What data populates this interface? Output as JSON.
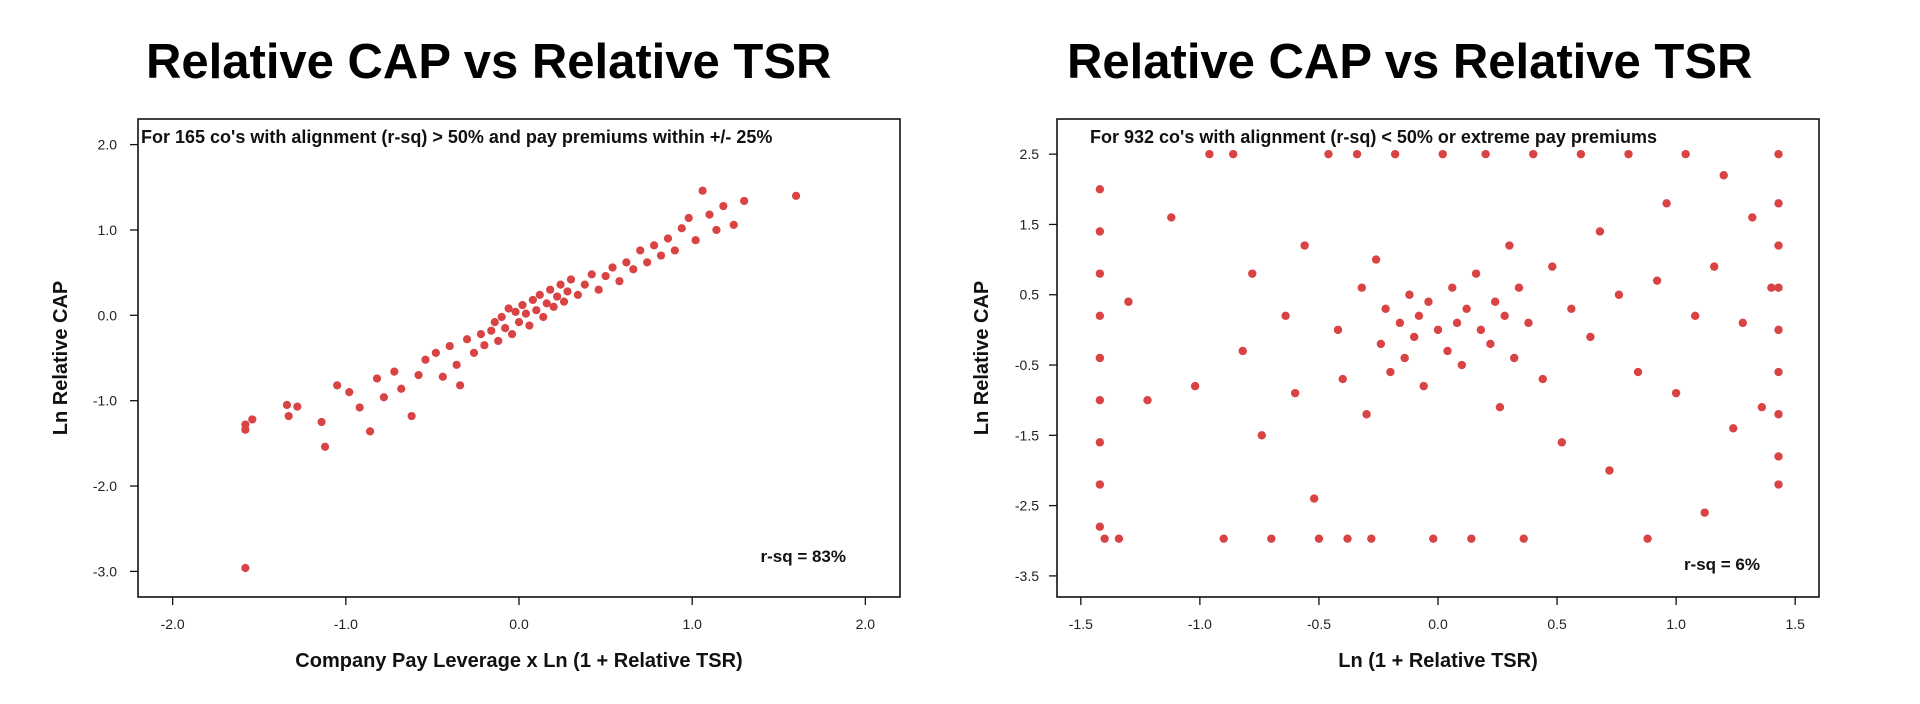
{
  "chart_data": [
    {
      "type": "scatter",
      "title": "Relative CAP vs Relative TSR",
      "annotation": "For 165 co's with alignment (r-sq) > 50% and pay premiums within +/- 25%",
      "xlabel": "Company Pay Leverage x Ln (1 + Relative TSR)",
      "ylabel": "Ln Relative CAP",
      "xlim": [
        -2.2,
        2.2
      ],
      "ylim": [
        -3.3,
        2.3
      ],
      "x_ticks": [
        -2.0,
        -1.0,
        0.0,
        1.0,
        2.0
      ],
      "x_tick_labels": [
        "-2.0",
        "-1.0",
        "0.0",
        "1.0",
        "2.0"
      ],
      "y_ticks": [
        2.0,
        1.0,
        0.0,
        -1.0,
        -2.0,
        -3.0
      ],
      "y_tick_labels": [
        "2.0",
        "1.0",
        "0.0",
        "-1.0",
        "-2.0",
        "-3.0"
      ],
      "stat_label": "r-sq = 83%",
      "grid": false,
      "legend": "none",
      "point_color": "#d94343",
      "points": [
        [
          -1.58,
          -1.34
        ],
        [
          -1.58,
          -1.28
        ],
        [
          -1.54,
          -1.22
        ],
        [
          -1.34,
          -1.05
        ],
        [
          -1.33,
          -1.18
        ],
        [
          -1.28,
          -1.07
        ],
        [
          -1.14,
          -1.25
        ],
        [
          -1.12,
          -1.54
        ],
        [
          -1.05,
          -0.82
        ],
        [
          -0.98,
          -0.9
        ],
        [
          -0.92,
          -1.08
        ],
        [
          -0.86,
          -1.36
        ],
        [
          -0.82,
          -0.74
        ],
        [
          -0.78,
          -0.96
        ],
        [
          -0.72,
          -0.66
        ],
        [
          -0.68,
          -0.86
        ],
        [
          -0.62,
          -1.18
        ],
        [
          -0.58,
          -0.7
        ],
        [
          -0.54,
          -0.52
        ],
        [
          -0.48,
          -0.44
        ],
        [
          -0.44,
          -0.72
        ],
        [
          -0.4,
          -0.36
        ],
        [
          -0.36,
          -0.58
        ],
        [
          -0.34,
          -0.82
        ],
        [
          -0.3,
          -0.28
        ],
        [
          -0.26,
          -0.44
        ],
        [
          -0.22,
          -0.22
        ],
        [
          -0.2,
          -0.35
        ],
        [
          -0.16,
          -0.18
        ],
        [
          -0.14,
          -0.08
        ],
        [
          -0.12,
          -0.3
        ],
        [
          -0.1,
          -0.02
        ],
        [
          -0.08,
          -0.15
        ],
        [
          -0.06,
          0.08
        ],
        [
          -0.04,
          -0.22
        ],
        [
          -0.02,
          0.04
        ],
        [
          0.0,
          -0.08
        ],
        [
          0.02,
          0.12
        ],
        [
          0.04,
          0.02
        ],
        [
          0.06,
          -0.12
        ],
        [
          0.08,
          0.18
        ],
        [
          0.1,
          0.06
        ],
        [
          0.12,
          0.24
        ],
        [
          0.14,
          -0.02
        ],
        [
          0.16,
          0.14
        ],
        [
          0.18,
          0.3
        ],
        [
          0.2,
          0.1
        ],
        [
          0.22,
          0.22
        ],
        [
          0.24,
          0.36
        ],
        [
          0.26,
          0.16
        ],
        [
          0.28,
          0.28
        ],
        [
          0.3,
          0.42
        ],
        [
          0.34,
          0.24
        ],
        [
          0.38,
          0.36
        ],
        [
          0.42,
          0.48
        ],
        [
          0.46,
          0.3
        ],
        [
          0.5,
          0.46
        ],
        [
          0.54,
          0.56
        ],
        [
          0.58,
          0.4
        ],
        [
          0.62,
          0.62
        ],
        [
          0.66,
          0.54
        ],
        [
          0.7,
          0.76
        ],
        [
          0.74,
          0.62
        ],
        [
          0.78,
          0.82
        ],
        [
          0.82,
          0.7
        ],
        [
          0.86,
          0.9
        ],
        [
          0.9,
          0.76
        ],
        [
          0.94,
          1.02
        ],
        [
          0.98,
          1.14
        ],
        [
          1.02,
          0.88
        ],
        [
          1.06,
          1.46
        ],
        [
          1.1,
          1.18
        ],
        [
          1.14,
          1.0
        ],
        [
          1.18,
          1.28
        ],
        [
          1.24,
          1.06
        ],
        [
          1.3,
          1.34
        ],
        [
          1.6,
          1.4
        ],
        [
          -1.58,
          -2.96
        ]
      ]
    },
    {
      "type": "scatter",
      "title": "Relative CAP vs Relative TSR",
      "annotation": "For 932 co's with alignment (r-sq) < 50% or extreme pay premiums",
      "xlabel": "Ln (1 + Relative TSR)",
      "ylabel": "Ln Relative CAP",
      "xlim": [
        -1.6,
        1.6
      ],
      "ylim": [
        -3.8,
        3.0
      ],
      "x_ticks": [
        -1.5,
        -1.0,
        -0.5,
        0.0,
        0.5,
        1.0,
        1.5
      ],
      "x_tick_labels": [
        "-1.5",
        "-1.0",
        "-0.5",
        "0.0",
        "0.5",
        "1.0",
        "1.5"
      ],
      "y_ticks": [
        2.5,
        1.5,
        0.5,
        -0.5,
        -1.5,
        -2.5,
        -3.5
      ],
      "y_tick_labels": [
        "2.5",
        "1.5",
        "0.5",
        "-0.5",
        "-1.5",
        "-2.5",
        "-3.5"
      ],
      "stat_label": "r-sq = 6%",
      "grid": false,
      "legend": "none",
      "point_color": "#d94343",
      "points": [
        [
          -1.42,
          2.0
        ],
        [
          -1.42,
          1.4
        ],
        [
          -1.42,
          0.8
        ],
        [
          -1.42,
          0.2
        ],
        [
          -1.42,
          -0.4
        ],
        [
          -1.42,
          -1.0
        ],
        [
          -1.42,
          -1.6
        ],
        [
          -1.42,
          -2.2
        ],
        [
          -1.42,
          -2.8
        ],
        [
          -1.4,
          -2.97
        ],
        [
          -1.34,
          -2.97
        ],
        [
          -1.3,
          0.4
        ],
        [
          -1.22,
          -1.0
        ],
        [
          -1.12,
          1.6
        ],
        [
          -1.02,
          -0.8
        ],
        [
          -0.96,
          2.5
        ],
        [
          -0.9,
          -2.97
        ],
        [
          -0.86,
          2.5
        ],
        [
          -0.82,
          -0.3
        ],
        [
          -0.78,
          0.8
        ],
        [
          -0.74,
          -1.5
        ],
        [
          -0.7,
          -2.97
        ],
        [
          -0.64,
          0.2
        ],
        [
          -0.6,
          -0.9
        ],
        [
          -0.56,
          1.2
        ],
        [
          -0.52,
          -2.4
        ],
        [
          -0.5,
          -2.97
        ],
        [
          -0.46,
          2.5
        ],
        [
          -0.42,
          0.0
        ],
        [
          -0.4,
          -0.7
        ],
        [
          -0.38,
          -2.97
        ],
        [
          -0.34,
          2.5
        ],
        [
          -0.32,
          0.6
        ],
        [
          -0.3,
          -1.2
        ],
        [
          -0.28,
          -2.97
        ],
        [
          -0.26,
          1.0
        ],
        [
          -0.24,
          -0.2
        ],
        [
          -0.22,
          0.3
        ],
        [
          -0.2,
          -0.6
        ],
        [
          -0.18,
          2.5
        ],
        [
          -0.16,
          0.1
        ],
        [
          -0.14,
          -0.4
        ],
        [
          -0.12,
          0.5
        ],
        [
          -0.1,
          -0.1
        ],
        [
          -0.08,
          0.2
        ],
        [
          -0.06,
          -0.8
        ],
        [
          -0.04,
          0.4
        ],
        [
          -0.02,
          -2.97
        ],
        [
          0.0,
          0.0
        ],
        [
          0.02,
          2.5
        ],
        [
          0.04,
          -0.3
        ],
        [
          0.06,
          0.6
        ],
        [
          0.08,
          0.1
        ],
        [
          0.1,
          -0.5
        ],
        [
          0.12,
          0.3
        ],
        [
          0.14,
          -2.97
        ],
        [
          0.16,
          0.8
        ],
        [
          0.18,
          0.0
        ],
        [
          0.2,
          2.5
        ],
        [
          0.22,
          -0.2
        ],
        [
          0.24,
          0.4
        ],
        [
          0.26,
          -1.1
        ],
        [
          0.28,
          0.2
        ],
        [
          0.3,
          1.2
        ],
        [
          0.32,
          -0.4
        ],
        [
          0.34,
          0.6
        ],
        [
          0.36,
          -2.97
        ],
        [
          0.38,
          0.1
        ],
        [
          0.4,
          2.5
        ],
        [
          0.44,
          -0.7
        ],
        [
          0.48,
          0.9
        ],
        [
          0.52,
          -1.6
        ],
        [
          0.56,
          0.3
        ],
        [
          0.6,
          2.5
        ],
        [
          0.64,
          -0.1
        ],
        [
          0.68,
          1.4
        ],
        [
          0.72,
          -2.0
        ],
        [
          0.76,
          0.5
        ],
        [
          0.8,
          2.5
        ],
        [
          0.84,
          -0.6
        ],
        [
          0.88,
          -2.97
        ],
        [
          0.92,
          0.7
        ],
        [
          0.96,
          1.8
        ],
        [
          1.0,
          -0.9
        ],
        [
          1.04,
          2.5
        ],
        [
          1.08,
          0.2
        ],
        [
          1.12,
          -2.6
        ],
        [
          1.16,
          0.9
        ],
        [
          1.2,
          2.2
        ],
        [
          1.24,
          -1.4
        ],
        [
          1.28,
          0.1
        ],
        [
          1.32,
          1.6
        ],
        [
          1.36,
          -1.1
        ],
        [
          1.4,
          0.6
        ],
        [
          1.43,
          2.5
        ],
        [
          1.43,
          1.8
        ],
        [
          1.43,
          1.2
        ],
        [
          1.43,
          0.6
        ],
        [
          1.43,
          0.0
        ],
        [
          1.43,
          -0.6
        ],
        [
          1.43,
          -1.2
        ],
        [
          1.43,
          -1.8
        ],
        [
          1.43,
          -2.2
        ]
      ]
    }
  ]
}
